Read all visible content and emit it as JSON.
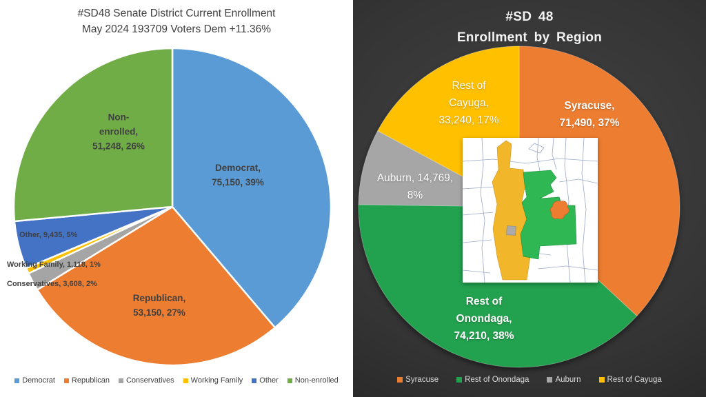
{
  "left_chart": {
    "title_line1": "#SD48 Senate District Current Enrollment",
    "title_line2": "May 2024 193709 Voters Dem +11.36%",
    "slice_labels": {
      "non_enrolled": "Non-\nenrolled,\n51,248, 26%",
      "democrat": "Democrat,\n75,150, 39%",
      "other": "Other, 9,435, 5%",
      "working_family": "Working Family, 1,118, 1%",
      "conservatives": "Conservatives, 3,608, 2%",
      "republican": "Republican,\n53,150, 27%"
    }
  },
  "right_chart": {
    "title_line1": "#SD 48",
    "title_line2": "Enrollment by Region",
    "slice_labels": {
      "rest_of_cayuga": "Rest of\nCayuga,\n33,240, 17%",
      "syracuse": "Syracuse,\n71,490, 37%",
      "auburn": "Auburn, 14,769,\n8%",
      "rest_of_onondaga": "Rest of\nOnondaga,\n74,210, 38%"
    }
  },
  "chart_data": [
    {
      "type": "pie",
      "title": "#SD48 Senate District Current Enrollment May 2024 193709 Voters Dem +11.36%",
      "labels": [
        "Democrat",
        "Republican",
        "Conservatives",
        "Working Family",
        "Other",
        "Non-enrolled"
      ],
      "values": [
        75150,
        53150,
        3608,
        1118,
        9435,
        51248
      ],
      "percents": [
        39,
        27,
        2,
        1,
        5,
        26
      ],
      "colors": [
        "#5B9BD5",
        "#ED7D31",
        "#A5A5A5",
        "#FFC000",
        "#4472C4",
        "#70AD47"
      ],
      "total_voters": 193709,
      "legend_position": "bottom",
      "start_angle_deg": 0,
      "direction": "clockwise"
    },
    {
      "type": "pie",
      "title": "#SD 48 Enrollment by Region",
      "labels": [
        "Syracuse",
        "Rest of Onondaga",
        "Auburn",
        "Rest of Cayuga"
      ],
      "values": [
        71490,
        74210,
        14769,
        33240
      ],
      "percents": [
        37,
        38,
        8,
        17
      ],
      "colors": [
        "#ED7D31",
        "#22A14E",
        "#A6A6A6",
        "#FFC000"
      ],
      "total_voters": 193709,
      "legend_position": "bottom",
      "start_angle_deg": 0,
      "direction": "clockwise"
    }
  ]
}
